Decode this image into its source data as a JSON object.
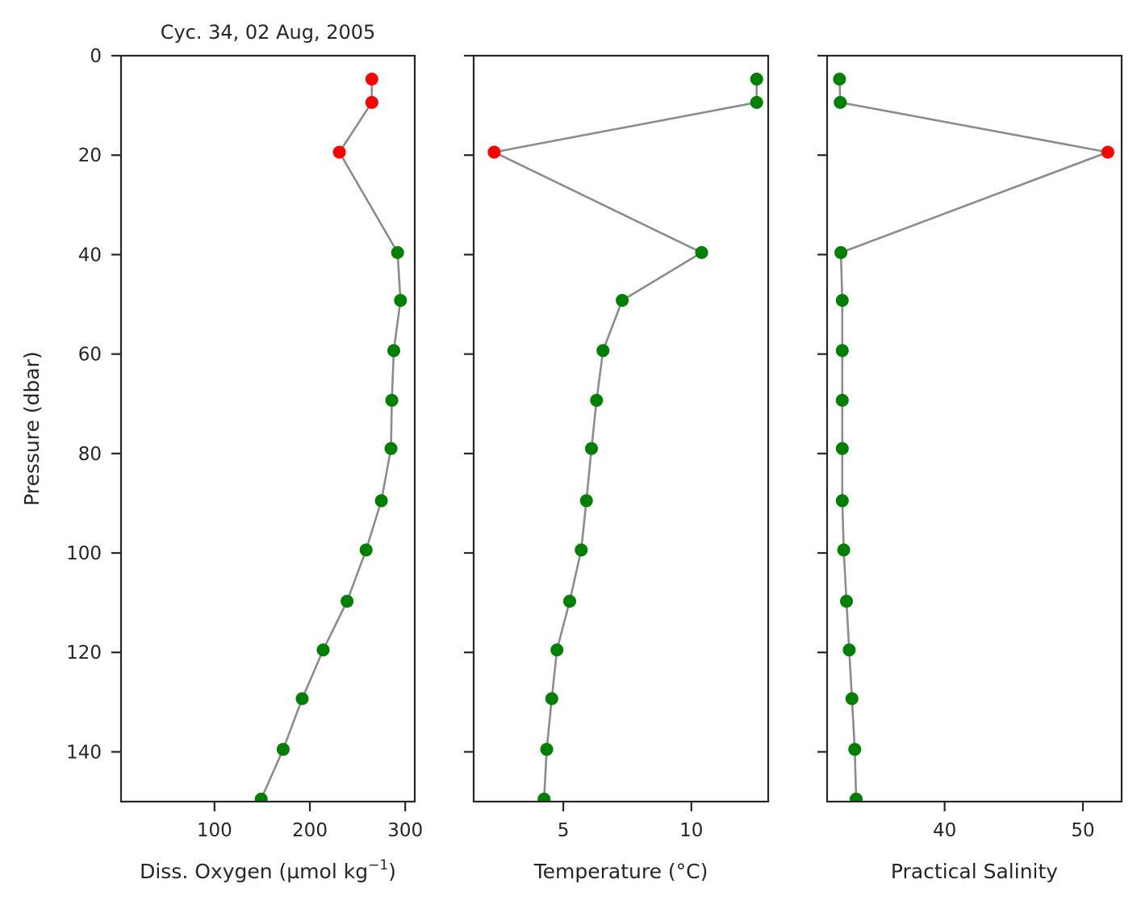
{
  "figure": {
    "title": "Cyc. 34, 02 Aug, 2005",
    "ylabel": "Pressure (dbar)",
    "line_color": "#8c8c8c",
    "good_color": "#008000",
    "bad_color": "#ff0000",
    "axis_color": "#262626"
  },
  "chart_data": [
    {
      "type": "line",
      "xlabel_main": "Diss. Oxygen (µmol kg",
      "xlabel_sup": "−1",
      "xlabel_tail": ")",
      "ylabel": "Pressure (dbar)",
      "xlim": [
        2,
        310
      ],
      "ylim": [
        150,
        0
      ],
      "xticks": [
        100,
        200,
        300
      ],
      "yticks": [
        0,
        20,
        40,
        60,
        80,
        100,
        120,
        140
      ],
      "y_inverted": true,
      "points": [
        {
          "x": 265,
          "y": 4.7,
          "flag": "bad"
        },
        {
          "x": 265,
          "y": 9.4,
          "flag": "bad"
        },
        {
          "x": 231,
          "y": 19.4,
          "flag": "bad"
        },
        {
          "x": 292,
          "y": 39.6,
          "flag": "good"
        },
        {
          "x": 295,
          "y": 49.2,
          "flag": "good"
        },
        {
          "x": 288,
          "y": 59.3,
          "flag": "good"
        },
        {
          "x": 286,
          "y": 69.3,
          "flag": "good"
        },
        {
          "x": 285,
          "y": 79.0,
          "flag": "good"
        },
        {
          "x": 275,
          "y": 89.5,
          "flag": "good"
        },
        {
          "x": 259,
          "y": 99.4,
          "flag": "good"
        },
        {
          "x": 239,
          "y": 109.7,
          "flag": "good"
        },
        {
          "x": 214,
          "y": 119.5,
          "flag": "good"
        },
        {
          "x": 192,
          "y": 129.3,
          "flag": "good"
        },
        {
          "x": 172,
          "y": 139.5,
          "flag": "good"
        },
        {
          "x": 149,
          "y": 149.5,
          "flag": "good"
        }
      ]
    },
    {
      "type": "line",
      "xlabel_main": "Temperature (°C)",
      "xlabel_sup": "",
      "xlabel_tail": "",
      "xlim": [
        1.5,
        13
      ],
      "ylim": [
        150,
        0
      ],
      "xticks": [
        5,
        10
      ],
      "yticks": [
        0,
        20,
        40,
        60,
        80,
        100,
        120,
        140
      ],
      "y_inverted": true,
      "points": [
        {
          "x": 12.55,
          "y": 4.7,
          "flag": "good"
        },
        {
          "x": 12.55,
          "y": 9.4,
          "flag": "good"
        },
        {
          "x": 2.3,
          "y": 19.4,
          "flag": "bad"
        },
        {
          "x": 10.4,
          "y": 39.6,
          "flag": "good"
        },
        {
          "x": 7.3,
          "y": 49.2,
          "flag": "good"
        },
        {
          "x": 6.55,
          "y": 59.3,
          "flag": "good"
        },
        {
          "x": 6.3,
          "y": 69.3,
          "flag": "good"
        },
        {
          "x": 6.1,
          "y": 79.0,
          "flag": "good"
        },
        {
          "x": 5.9,
          "y": 89.5,
          "flag": "good"
        },
        {
          "x": 5.7,
          "y": 99.4,
          "flag": "good"
        },
        {
          "x": 5.25,
          "y": 109.7,
          "flag": "good"
        },
        {
          "x": 4.75,
          "y": 119.5,
          "flag": "good"
        },
        {
          "x": 4.55,
          "y": 129.3,
          "flag": "good"
        },
        {
          "x": 4.35,
          "y": 139.5,
          "flag": "good"
        },
        {
          "x": 4.25,
          "y": 149.5,
          "flag": "good"
        }
      ]
    },
    {
      "type": "line",
      "xlabel_main": "Practical Salinity",
      "xlabel_sup": "",
      "xlabel_tail": "",
      "xlim": [
        31.5,
        52.8
      ],
      "ylim": [
        150,
        0
      ],
      "xticks": [
        40,
        50
      ],
      "yticks": [
        0,
        20,
        40,
        60,
        80,
        100,
        120,
        140
      ],
      "y_inverted": true,
      "points": [
        {
          "x": 32.4,
          "y": 4.7,
          "flag": "good"
        },
        {
          "x": 32.45,
          "y": 9.4,
          "flag": "good"
        },
        {
          "x": 51.8,
          "y": 19.4,
          "flag": "bad"
        },
        {
          "x": 32.5,
          "y": 39.6,
          "flag": "good"
        },
        {
          "x": 32.6,
          "y": 49.2,
          "flag": "good"
        },
        {
          "x": 32.6,
          "y": 59.3,
          "flag": "good"
        },
        {
          "x": 32.6,
          "y": 69.3,
          "flag": "good"
        },
        {
          "x": 32.6,
          "y": 79.0,
          "flag": "good"
        },
        {
          "x": 32.6,
          "y": 89.5,
          "flag": "good"
        },
        {
          "x": 32.7,
          "y": 99.4,
          "flag": "good"
        },
        {
          "x": 32.9,
          "y": 109.7,
          "flag": "good"
        },
        {
          "x": 33.1,
          "y": 119.5,
          "flag": "good"
        },
        {
          "x": 33.3,
          "y": 129.3,
          "flag": "good"
        },
        {
          "x": 33.5,
          "y": 139.5,
          "flag": "good"
        },
        {
          "x": 33.6,
          "y": 149.5,
          "flag": "good"
        }
      ]
    }
  ]
}
